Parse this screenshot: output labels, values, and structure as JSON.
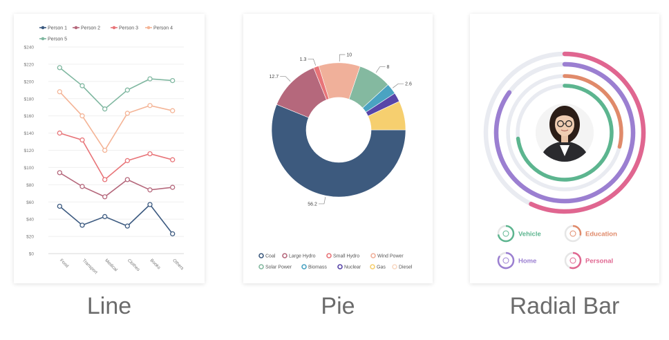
{
  "captions": {
    "line": "Line",
    "pie": "Pie",
    "radial": "Radial Bar"
  },
  "chart_data": [
    {
      "type": "line",
      "categories": [
        "Food",
        "Transport",
        "Medical",
        "Clothes",
        "Books",
        "Others"
      ],
      "y_ticks": [
        "$0",
        "$20",
        "$40",
        "$60",
        "$80",
        "$100",
        "$120",
        "$140",
        "$160",
        "$180",
        "$200",
        "$220",
        "$240"
      ],
      "ylim": [
        0,
        240
      ],
      "grid": true,
      "legend": "top",
      "series": [
        {
          "name": "Person 1",
          "color": "#3c5a80",
          "values": [
            55,
            33,
            43,
            32,
            57,
            23
          ]
        },
        {
          "name": "Person 2",
          "color": "#b5687c",
          "values": [
            94,
            78,
            66,
            86,
            74,
            77
          ]
        },
        {
          "name": "Person 3",
          "color": "#e87478",
          "values": [
            140,
            132,
            86,
            108,
            116,
            109
          ]
        },
        {
          "name": "Person 4",
          "color": "#f4b496",
          "values": [
            188,
            160,
            120,
            163,
            172,
            166
          ]
        },
        {
          "name": "Person 5",
          "color": "#7fb7a0",
          "values": [
            216,
            195,
            168,
            190,
            203,
            201
          ]
        }
      ]
    },
    {
      "type": "pie",
      "donut": true,
      "legend": "bottom",
      "slices": [
        {
          "name": "Coal",
          "value": 56.2,
          "color": "#3d5a7e",
          "label": "56.2"
        },
        {
          "name": "Large Hydro",
          "value": 12.7,
          "color": "#b5687c",
          "label": "12.7"
        },
        {
          "name": "Small Hydro",
          "value": 1.3,
          "color": "#e87478",
          "label": "1.3"
        },
        {
          "name": "Wind Power",
          "value": 10,
          "color": "#f0b09a",
          "label": "10"
        },
        {
          "name": "Solar Power",
          "value": 8,
          "color": "#84b9a0",
          "label": "8"
        },
        {
          "name": "Biomass",
          "value": 2.6,
          "color": "#4aa3c2",
          "label": "2.6"
        },
        {
          "name": "Nuclear",
          "value": 2.2,
          "color": "#5845a8",
          "label": ""
        },
        {
          "name": "Gas",
          "value": 7,
          "color": "#f6cf6f",
          "label": ""
        },
        {
          "name": "Diesel",
          "value": 0,
          "color": "#f8d9c4",
          "label": ""
        }
      ]
    },
    {
      "type": "radial-bar",
      "legend": "bottom",
      "series": [
        {
          "name": "Vehicle",
          "color": "#5cb58f",
          "value": 0.73
        },
        {
          "name": "Education",
          "color": "#e08a6a",
          "value": 0.29
        },
        {
          "name": "Home",
          "color": "#9b7fd1",
          "value": 0.85
        },
        {
          "name": "Personal",
          "color": "#e06690",
          "value": 0.57
        }
      ]
    }
  ]
}
